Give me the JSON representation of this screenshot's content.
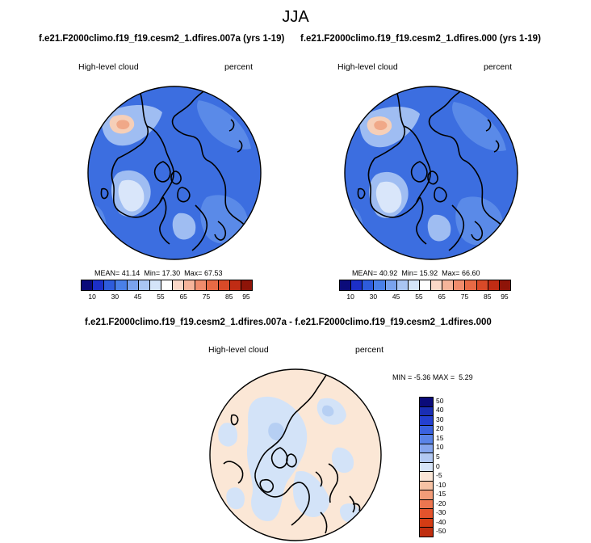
{
  "figure": {
    "title": "JJA",
    "top_left": {
      "case": "f.e21.F2000climo.f19_f19.cesm2_1.dfires.007a (yrs 1-19)",
      "variable": "High-level cloud",
      "units": "percent",
      "mean_label": "MEAN=",
      "mean": "41.14",
      "min_label": "Min=",
      "min": "17.30",
      "max_label": "Max=",
      "max": "67.53"
    },
    "top_right": {
      "case": "f.e21.F2000climo.f19_f19.cesm2_1.dfires.000 (yrs 1-19)",
      "variable": "High-level cloud",
      "units": "percent",
      "mean_label": "MEAN=",
      "mean": "40.92",
      "min_label": "Min=",
      "min": "15.92",
      "max_label": "Max=",
      "max": "66.60"
    },
    "difference": {
      "title": "f.e21.F2000climo.f19_f19.cesm2_1.dfires.007a - f.e21.F2000climo.f19_f19.cesm2_1.dfires.000",
      "variable": "High-level cloud",
      "units": "percent",
      "min_label": "MIN =",
      "min": "-5.36",
      "max_label": "MAX =",
      "max": "5.29"
    },
    "abs_colorbar": {
      "colors": [
        "#0b0b7a",
        "#1c2fc8",
        "#2e5cdc",
        "#4a80e8",
        "#7aa3ee",
        "#a9c5f3",
        "#d4e4f8",
        "#ffffff",
        "#fbd8c8",
        "#f6b49a",
        "#f08c6c",
        "#e86a45",
        "#d94a28",
        "#c02c14",
        "#8e1408"
      ],
      "labels": [
        "10",
        "30",
        "45",
        "55",
        "65",
        "75",
        "85",
        "95"
      ]
    },
    "diff_colorbar": {
      "colors": [
        "#0b0b7a",
        "#1a2eb4",
        "#2440d0",
        "#3a62e0",
        "#5a84e8",
        "#86a6ee",
        "#b2c8f2",
        "#d6e4f8",
        "#fbe6d6",
        "#f6c2a4",
        "#f29c78",
        "#ec7650",
        "#e4532c",
        "#d43c14",
        "#c02e10"
      ],
      "labels": [
        "50",
        "40",
        "30",
        "20",
        "15",
        "10",
        "5",
        "0",
        "-5",
        "-10",
        "-15",
        "-20",
        "-30",
        "-40",
        "-50"
      ]
    },
    "map_colors": {
      "base": "#3c6ee0",
      "medium": "#5a8ae8",
      "light": "#9fbdf2",
      "pale": "#d9e6fa",
      "warm": "#f6cfb8",
      "warm_strong": "#f0a888",
      "diff_base": "#fbe7d6",
      "diff_blue": "#d3e3f8",
      "diff_blue2": "#b6cff3"
    }
  }
}
